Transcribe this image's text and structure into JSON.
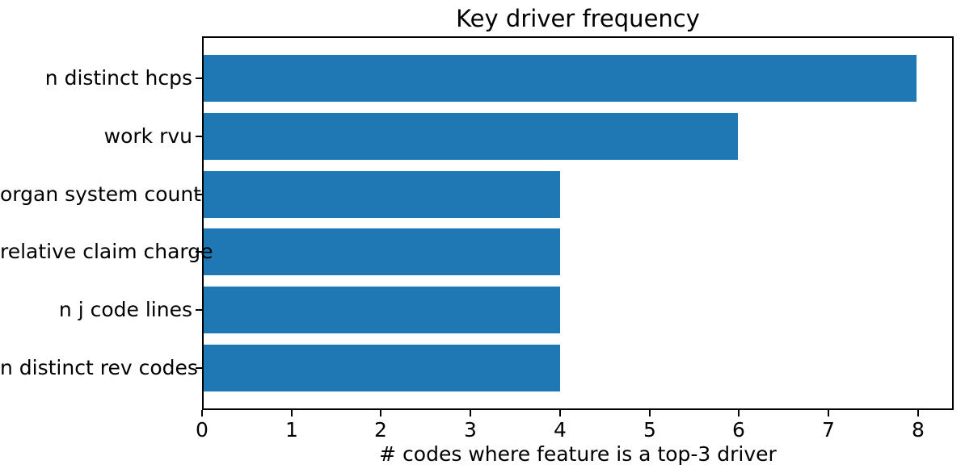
{
  "chart_data": {
    "type": "bar",
    "orientation": "horizontal",
    "title": "Key driver frequency",
    "xlabel": "# codes where feature is a top-3 driver",
    "ylabel": "",
    "categories": [
      "n distinct hcps",
      "work rvu",
      "organ system count",
      "relative claim charge",
      "n j code lines",
      "n distinct rev codes"
    ],
    "values": [
      8,
      6,
      4,
      4,
      4,
      4
    ],
    "xlim": [
      0,
      8.4
    ],
    "xticks": [
      0,
      1,
      2,
      3,
      4,
      5,
      6,
      7,
      8
    ],
    "grid": false,
    "legend": null,
    "bar_color": "#1f77b4",
    "colors": {
      "bar": "#1f77b4",
      "text": "#000000",
      "spine": "#000000",
      "background": "#ffffff"
    }
  }
}
